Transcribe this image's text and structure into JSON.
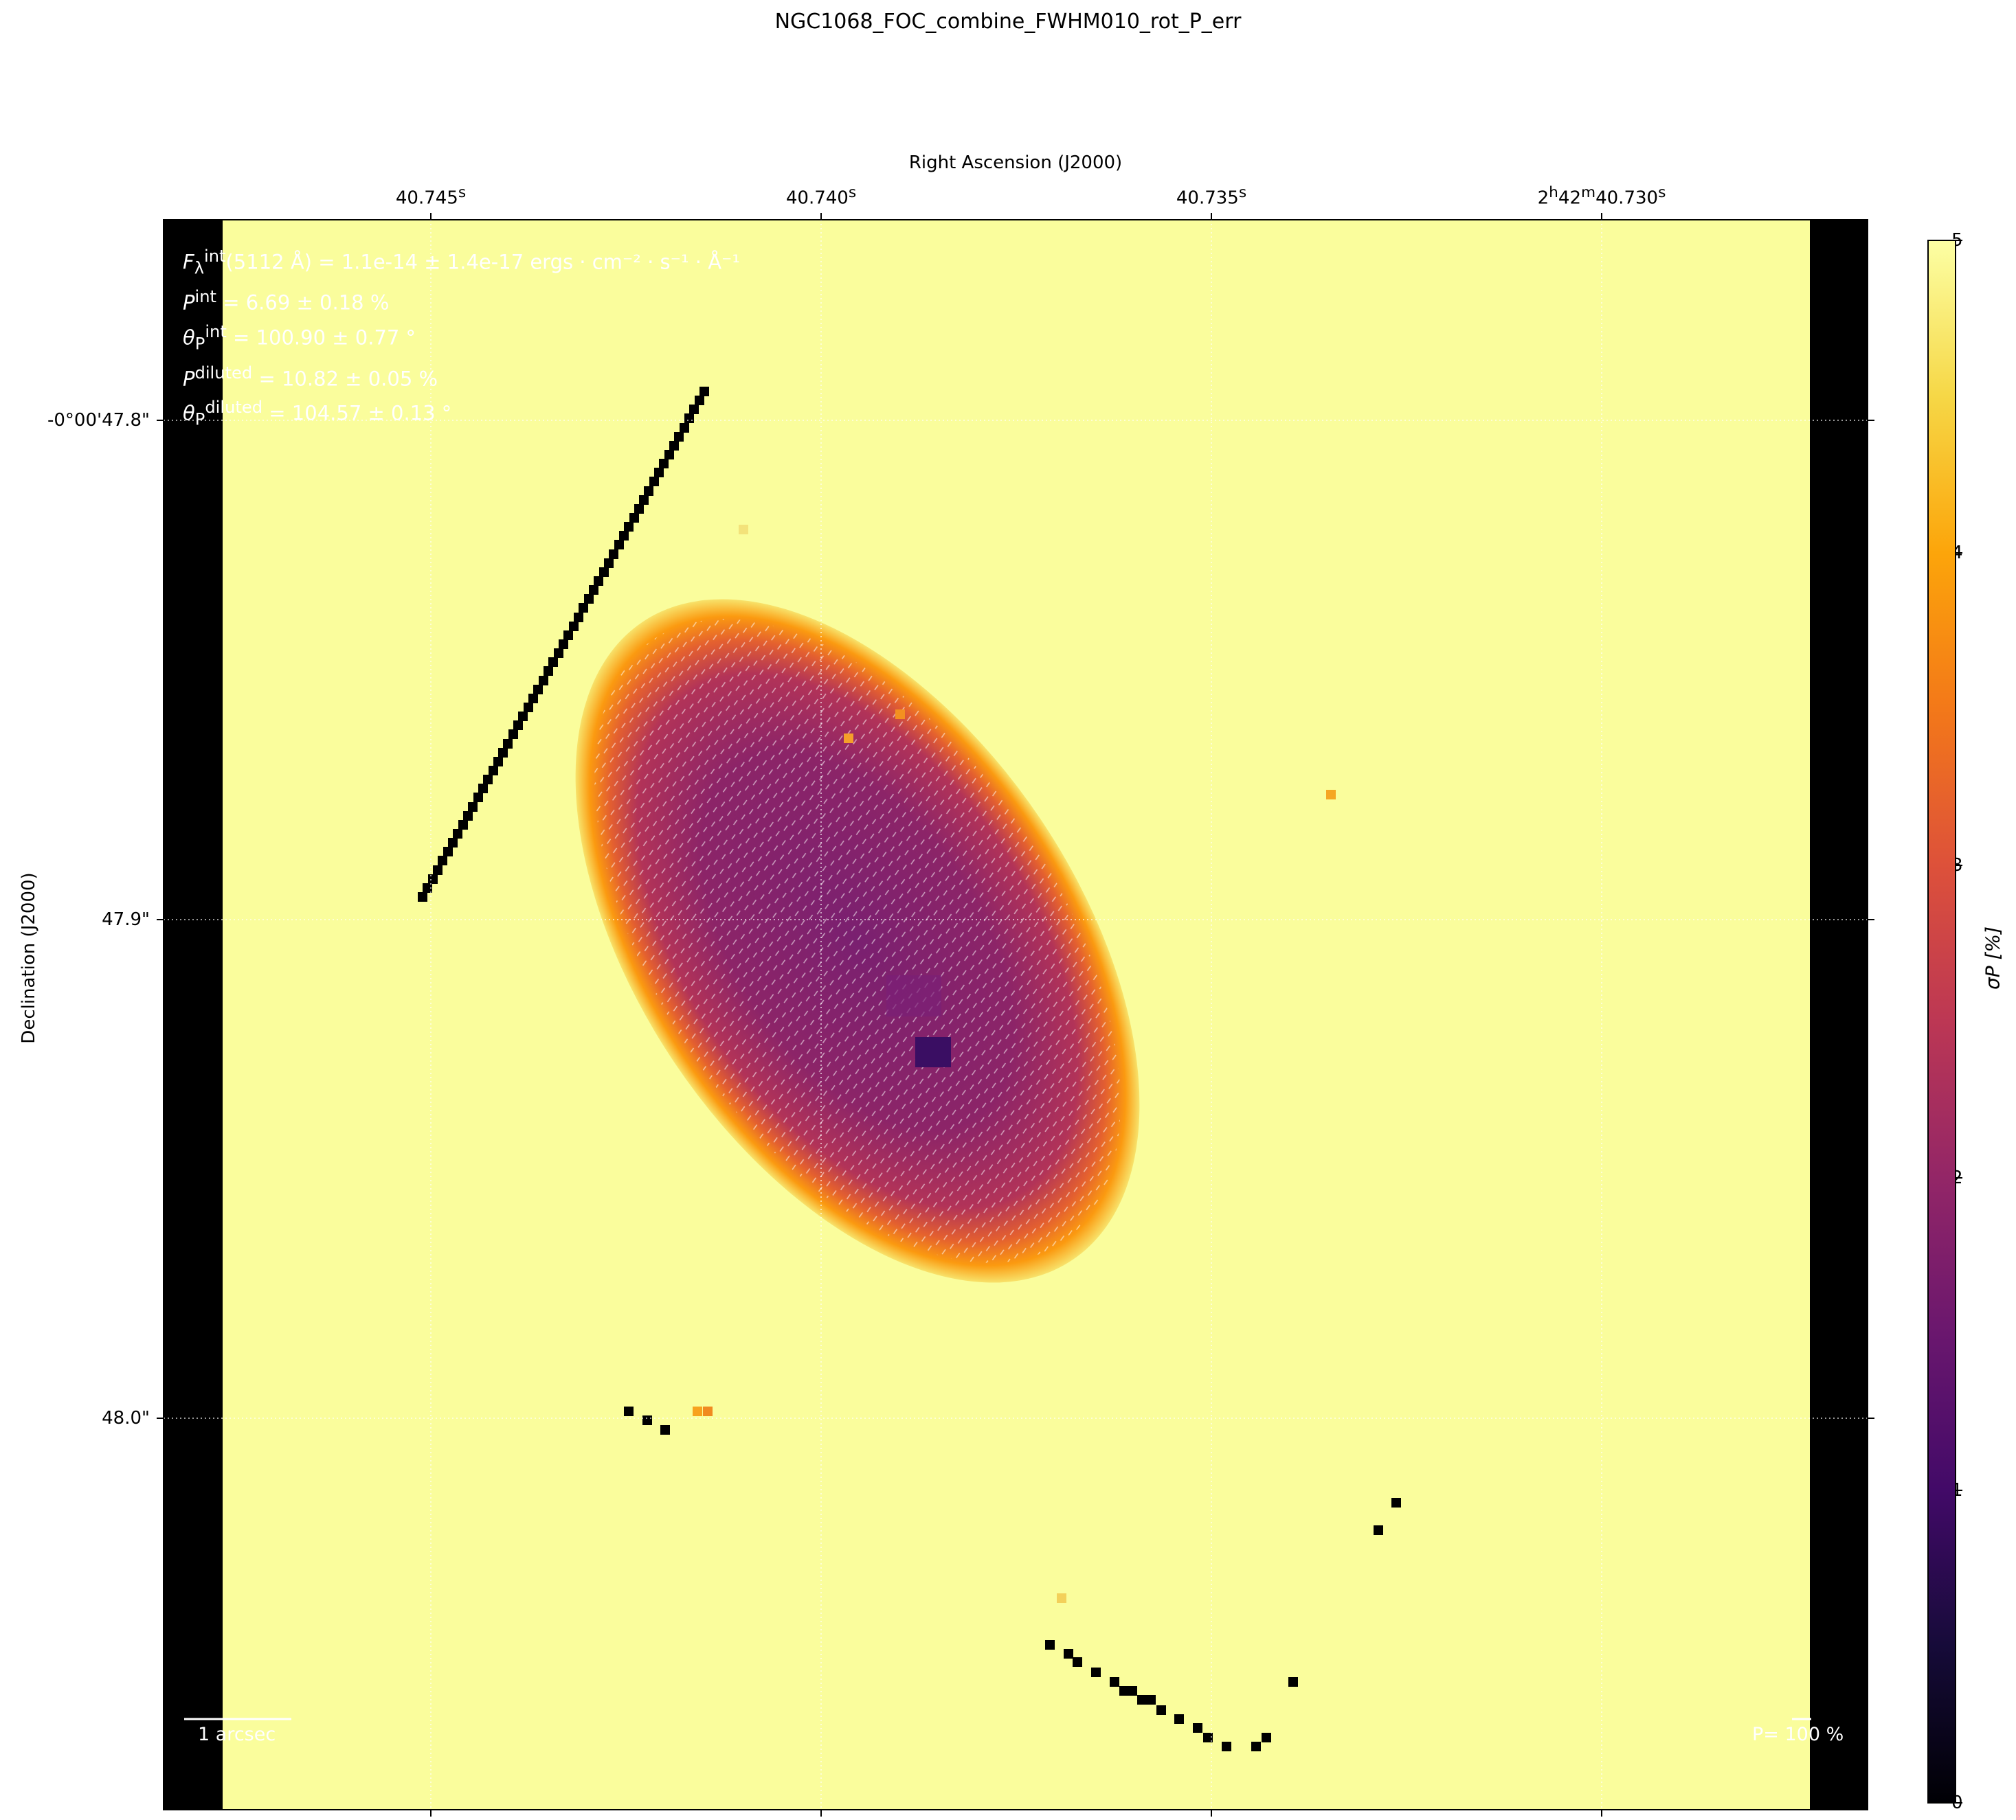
{
  "page": {
    "title": "NGC1068_FOC_combine_FWHM010_rot_P_err"
  },
  "chart_data": {
    "type": "heatmap",
    "title": "NGC1068_FOC_combine_FWHM010_rot_P_err",
    "xlabel": "Right Ascension (J2000)",
    "ylabel": "Declination (J2000)",
    "x_ticks": [
      "40.745s",
      "40.740s",
      "40.735s",
      "2h42m40.730s"
    ],
    "x_tick_parts": [
      {
        "main": "40.745",
        "sup": "s"
      },
      {
        "main": "40.740",
        "sup": "s"
      },
      {
        "main": "40.735",
        "sup": "s"
      },
      {
        "main": "2",
        "sup1": "h",
        "mid": "42",
        "sup2": "m",
        "end": "40.730",
        "sup3": "s"
      }
    ],
    "y_ticks": [
      "-0°00'47.8\"",
      "47.9\"",
      "48.0\""
    ],
    "colorbar": {
      "label": "σP [%]",
      "colormap": "inferno",
      "range": [
        0,
        5
      ],
      "ticks": [
        "0",
        "1",
        "2",
        "3",
        "4",
        "5"
      ],
      "tick_values": [
        0,
        1,
        2,
        3,
        4,
        5
      ]
    },
    "grid": "dotted white at tick positions",
    "background_value": 5,
    "annotations": {
      "flux": {
        "symbol": "F",
        "sub": "λ",
        "sup": "int",
        "rest": "(5112 Å) = 1.1e-14 ± 1.4e-17 ergs · cm⁻² · s⁻¹ · Å⁻¹"
      },
      "p_int": {
        "symbol": "P",
        "sup": "int",
        "rest": " = 6.69 ± 0.18 %"
      },
      "theta_int": {
        "symbol": "θ",
        "sub": "P",
        "sup": "int",
        "rest": " = 100.90 ± 0.77 °"
      },
      "p_diluted": {
        "symbol": "P",
        "sup": "diluted",
        "rest": " = 10.82 ± 0.05 %"
      },
      "theta_diluted": {
        "symbol": "θ",
        "sub": "P",
        "sup": "diluted",
        "rest": " = 104.57 ± 0.13 °"
      }
    },
    "scalebar_label": "1 arcsec",
    "pol_scale_label": "P= 100 %"
  }
}
